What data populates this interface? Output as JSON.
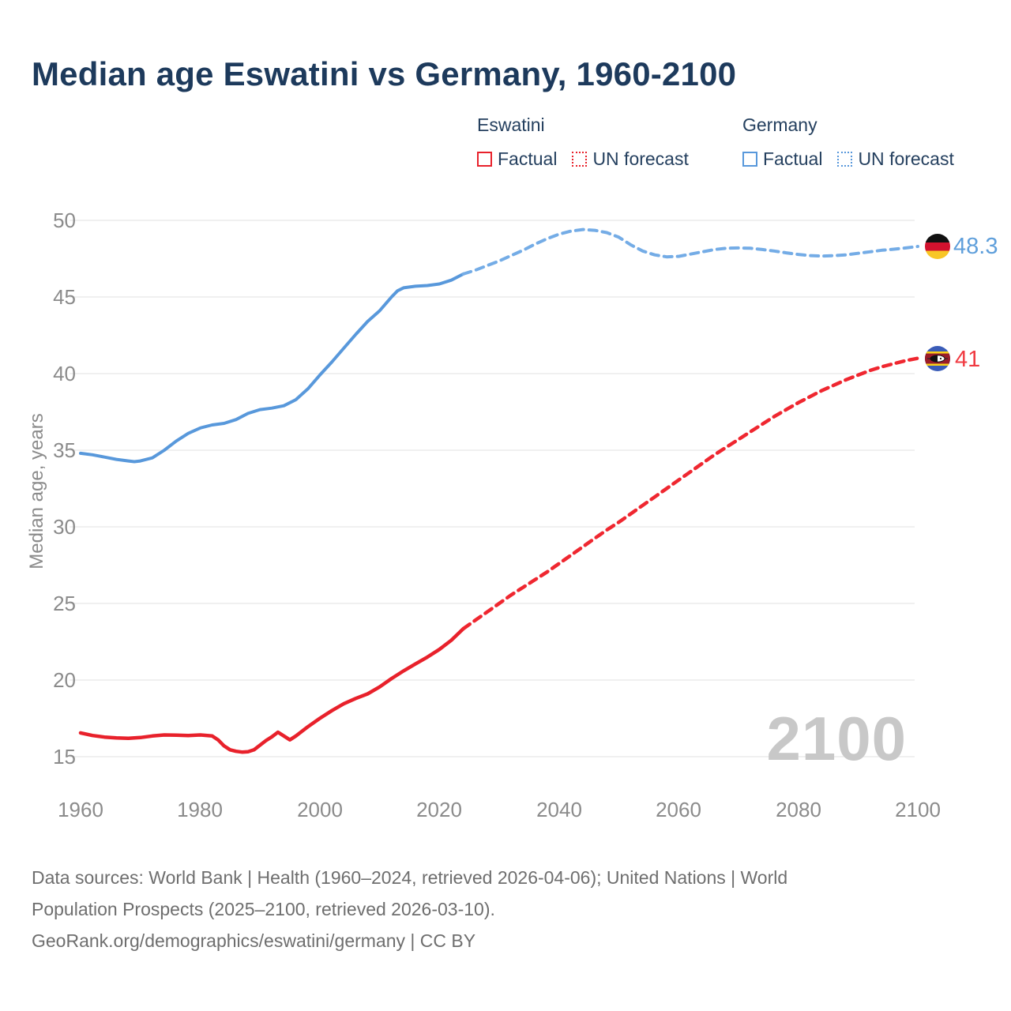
{
  "title": "Median age Eswatini vs Germany, 1960-2100",
  "legend": {
    "groups": [
      {
        "label": "Eswatini",
        "color": "#e8212b",
        "items": [
          {
            "label": "Factual",
            "style": "solid"
          },
          {
            "label": "UN forecast",
            "style": "dotted"
          }
        ]
      },
      {
        "label": "Germany",
        "color": "#5898db",
        "items": [
          {
            "label": "Factual",
            "style": "solid"
          },
          {
            "label": "UN forecast",
            "style": "dotted"
          }
        ]
      }
    ]
  },
  "end_labels": [
    {
      "country": "Germany",
      "value": "48.3",
      "color": "#5f9fdb",
      "flag": "germany-flag"
    },
    {
      "country": "Eswatini",
      "value": "41",
      "color": "#f03b42",
      "flag": "eswatini-flag"
    }
  ],
  "watermark": "2100",
  "footer": {
    "lines": [
      "Data sources: World Bank | Health (1960–2024, retrieved 2026-04-06); United Nations | World",
      "Population Prospects (2025–2100, retrieved 2026-03-10).",
      "GeoRank.org/demographics/eswatini/germany | CC BY"
    ]
  },
  "chart_data": {
    "type": "line",
    "title": "Median age Eswatini vs Germany, 1960-2100",
    "xlabel": "",
    "ylabel": "Median age, years",
    "xlim": [
      1960,
      2100
    ],
    "ylim": [
      15,
      50
    ],
    "x_ticks": [
      1960,
      1980,
      2000,
      2020,
      2040,
      2060,
      2080,
      2100
    ],
    "y_ticks": [
      15,
      20,
      25,
      30,
      35,
      40,
      45,
      50
    ],
    "grid": "horizontal",
    "legend_position": "top-right",
    "series": [
      {
        "name": "germany-factual-line",
        "label": "Germany Factual",
        "style": "solid",
        "color": "#5898db",
        "width": 4,
        "points": [
          [
            1960,
            34.8
          ],
          [
            1962,
            34.7
          ],
          [
            1964,
            34.55
          ],
          [
            1966,
            34.4
          ],
          [
            1968,
            34.3
          ],
          [
            1969,
            34.25
          ],
          [
            1970,
            34.3
          ],
          [
            1972,
            34.5
          ],
          [
            1974,
            35.0
          ],
          [
            1976,
            35.6
          ],
          [
            1978,
            36.1
          ],
          [
            1980,
            36.45
          ],
          [
            1982,
            36.65
          ],
          [
            1984,
            36.75
          ],
          [
            1986,
            37.0
          ],
          [
            1988,
            37.4
          ],
          [
            1990,
            37.65
          ],
          [
            1992,
            37.75
          ],
          [
            1994,
            37.9
          ],
          [
            1996,
            38.3
          ],
          [
            1998,
            39.0
          ],
          [
            2000,
            39.9
          ],
          [
            2002,
            40.75
          ],
          [
            2004,
            41.65
          ],
          [
            2006,
            42.55
          ],
          [
            2008,
            43.4
          ],
          [
            2010,
            44.1
          ],
          [
            2012,
            45.0
          ],
          [
            2013,
            45.4
          ],
          [
            2014,
            45.6
          ],
          [
            2016,
            45.7
          ],
          [
            2018,
            45.75
          ],
          [
            2020,
            45.85
          ],
          [
            2022,
            46.1
          ],
          [
            2024,
            46.5
          ]
        ]
      },
      {
        "name": "germany-forecast-line",
        "label": "Germany UN forecast",
        "style": "dashed",
        "color": "#74ace6",
        "width": 4,
        "points": [
          [
            2024,
            46.5
          ],
          [
            2026,
            46.75
          ],
          [
            2028,
            47.05
          ],
          [
            2030,
            47.35
          ],
          [
            2032,
            47.7
          ],
          [
            2034,
            48.05
          ],
          [
            2036,
            48.45
          ],
          [
            2038,
            48.8
          ],
          [
            2040,
            49.1
          ],
          [
            2042,
            49.3
          ],
          [
            2044,
            49.4
          ],
          [
            2046,
            49.35
          ],
          [
            2048,
            49.2
          ],
          [
            2050,
            48.9
          ],
          [
            2052,
            48.4
          ],
          [
            2054,
            48.0
          ],
          [
            2056,
            47.75
          ],
          [
            2058,
            47.62
          ],
          [
            2060,
            47.65
          ],
          [
            2062,
            47.8
          ],
          [
            2064,
            47.95
          ],
          [
            2066,
            48.1
          ],
          [
            2068,
            48.18
          ],
          [
            2070,
            48.2
          ],
          [
            2072,
            48.18
          ],
          [
            2074,
            48.1
          ],
          [
            2076,
            48.0
          ],
          [
            2078,
            47.88
          ],
          [
            2080,
            47.78
          ],
          [
            2082,
            47.7
          ],
          [
            2084,
            47.67
          ],
          [
            2086,
            47.7
          ],
          [
            2088,
            47.75
          ],
          [
            2090,
            47.85
          ],
          [
            2092,
            47.95
          ],
          [
            2094,
            48.05
          ],
          [
            2096,
            48.12
          ],
          [
            2098,
            48.2
          ],
          [
            2100,
            48.3
          ]
        ]
      },
      {
        "name": "eswatini-factual-line",
        "label": "Eswatini Factual",
        "style": "solid",
        "color": "#e8212b",
        "width": 4.5,
        "points": [
          [
            1960,
            16.55
          ],
          [
            1962,
            16.38
          ],
          [
            1964,
            16.28
          ],
          [
            1966,
            16.22
          ],
          [
            1968,
            16.2
          ],
          [
            1970,
            16.25
          ],
          [
            1972,
            16.35
          ],
          [
            1974,
            16.42
          ],
          [
            1976,
            16.4
          ],
          [
            1978,
            16.38
          ],
          [
            1980,
            16.42
          ],
          [
            1982,
            16.35
          ],
          [
            1983,
            16.1
          ],
          [
            1984,
            15.7
          ],
          [
            1985,
            15.45
          ],
          [
            1986,
            15.35
          ],
          [
            1987,
            15.3
          ],
          [
            1988,
            15.32
          ],
          [
            1989,
            15.45
          ],
          [
            1990,
            15.75
          ],
          [
            1991,
            16.05
          ],
          [
            1992,
            16.3
          ],
          [
            1993,
            16.6
          ],
          [
            1994,
            16.35
          ],
          [
            1995,
            16.1
          ],
          [
            1996,
            16.35
          ],
          [
            1997,
            16.65
          ],
          [
            1998,
            16.95
          ],
          [
            2000,
            17.5
          ],
          [
            2002,
            18.0
          ],
          [
            2004,
            18.45
          ],
          [
            2006,
            18.8
          ],
          [
            2008,
            19.1
          ],
          [
            2010,
            19.55
          ],
          [
            2012,
            20.1
          ],
          [
            2014,
            20.6
          ],
          [
            2016,
            21.05
          ],
          [
            2018,
            21.5
          ],
          [
            2020,
            22.0
          ],
          [
            2022,
            22.6
          ],
          [
            2024,
            23.35
          ]
        ]
      },
      {
        "name": "eswatini-forecast-line",
        "label": "Eswatini UN forecast",
        "style": "dashed",
        "color": "#ef2730",
        "width": 4.5,
        "points": [
          [
            2024,
            23.35
          ],
          [
            2026,
            23.9
          ],
          [
            2028,
            24.45
          ],
          [
            2030,
            25.0
          ],
          [
            2032,
            25.55
          ],
          [
            2034,
            26.05
          ],
          [
            2036,
            26.55
          ],
          [
            2038,
            27.05
          ],
          [
            2040,
            27.6
          ],
          [
            2042,
            28.15
          ],
          [
            2044,
            28.7
          ],
          [
            2046,
            29.25
          ],
          [
            2048,
            29.8
          ],
          [
            2050,
            30.3
          ],
          [
            2052,
            30.85
          ],
          [
            2054,
            31.4
          ],
          [
            2056,
            31.95
          ],
          [
            2058,
            32.5
          ],
          [
            2060,
            33.05
          ],
          [
            2062,
            33.6
          ],
          [
            2064,
            34.15
          ],
          [
            2066,
            34.7
          ],
          [
            2068,
            35.2
          ],
          [
            2070,
            35.7
          ],
          [
            2072,
            36.2
          ],
          [
            2074,
            36.7
          ],
          [
            2076,
            37.2
          ],
          [
            2078,
            37.65
          ],
          [
            2080,
            38.1
          ],
          [
            2082,
            38.5
          ],
          [
            2084,
            38.9
          ],
          [
            2086,
            39.25
          ],
          [
            2088,
            39.6
          ],
          [
            2090,
            39.9
          ],
          [
            2092,
            40.2
          ],
          [
            2094,
            40.45
          ],
          [
            2096,
            40.65
          ],
          [
            2098,
            40.85
          ],
          [
            2100,
            41.0
          ]
        ]
      }
    ],
    "end_values": {
      "germany": 48.3,
      "eswatini": 41
    }
  }
}
